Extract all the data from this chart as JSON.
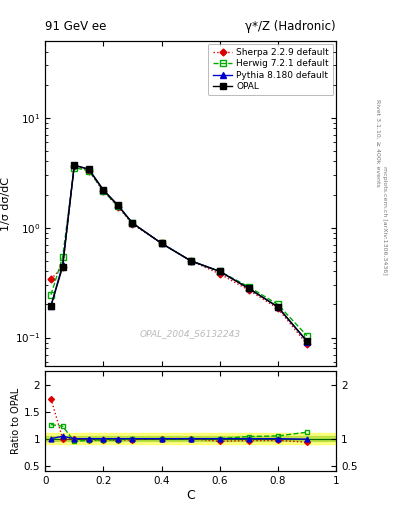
{
  "title_left": "91 GeV ee",
  "title_right": "γ*/Z (Hadronic)",
  "right_label_top": "Rivet 3.1.10, ≥ 400k events",
  "right_label_bot": "mcplots.cern.ch [arXiv:1306.3436]",
  "watermark": "OPAL_2004_S6132243",
  "ylabel_main": "1/σ dσ/dC",
  "ylabel_ratio": "Ratio to OPAL",
  "xlabel": "C",
  "ylim_main": [
    0.055,
    50
  ],
  "ylim_ratio": [
    0.4,
    2.25
  ],
  "opal_x": [
    0.02,
    0.06,
    0.1,
    0.15,
    0.2,
    0.25,
    0.3,
    0.4,
    0.5,
    0.6,
    0.7,
    0.8,
    0.9
  ],
  "opal_y": [
    0.195,
    0.44,
    3.7,
    3.4,
    2.2,
    1.6,
    1.1,
    0.72,
    0.5,
    0.4,
    0.28,
    0.19,
    0.093
  ],
  "herwig_x": [
    0.02,
    0.06,
    0.1,
    0.15,
    0.2,
    0.25,
    0.3,
    0.4,
    0.5,
    0.6,
    0.7,
    0.8,
    0.9
  ],
  "herwig_y": [
    0.245,
    0.54,
    3.52,
    3.3,
    2.16,
    1.56,
    1.1,
    0.72,
    0.5,
    0.4,
    0.29,
    0.2,
    0.104
  ],
  "pythia_x": [
    0.02,
    0.06,
    0.1,
    0.15,
    0.2,
    0.25,
    0.3,
    0.4,
    0.5,
    0.6,
    0.7,
    0.8,
    0.9
  ],
  "pythia_y": [
    0.195,
    0.46,
    3.7,
    3.4,
    2.2,
    1.6,
    1.1,
    0.72,
    0.5,
    0.4,
    0.28,
    0.19,
    0.092
  ],
  "sherpa_x": [
    0.02,
    0.06,
    0.1,
    0.15,
    0.2,
    0.25,
    0.3,
    0.4,
    0.5,
    0.6,
    0.7,
    0.8,
    0.9
  ],
  "sherpa_y": [
    0.34,
    0.44,
    3.65,
    3.3,
    2.15,
    1.55,
    1.08,
    0.72,
    0.5,
    0.38,
    0.27,
    0.184,
    0.087
  ],
  "herwig_ratio": [
    1.26,
    1.23,
    0.95,
    0.97,
    0.98,
    0.975,
    1.0,
    1.0,
    1.0,
    1.0,
    1.04,
    1.05,
    1.12
  ],
  "pythia_ratio": [
    1.0,
    1.045,
    1.0,
    1.0,
    1.0,
    1.0,
    1.0,
    1.0,
    1.0,
    1.0,
    1.0,
    1.0,
    0.99
  ],
  "sherpa_ratio": [
    1.74,
    1.0,
    0.99,
    0.97,
    0.977,
    0.97,
    0.982,
    1.0,
    1.0,
    0.95,
    0.964,
    0.968,
    0.935
  ],
  "opal_color": "#000000",
  "herwig_color": "#00aa00",
  "pythia_color": "#0000cc",
  "sherpa_color": "#dd0000",
  "band_yellow": "#ffff00",
  "band_green": "#88cc00",
  "band_alpha": 0.45
}
